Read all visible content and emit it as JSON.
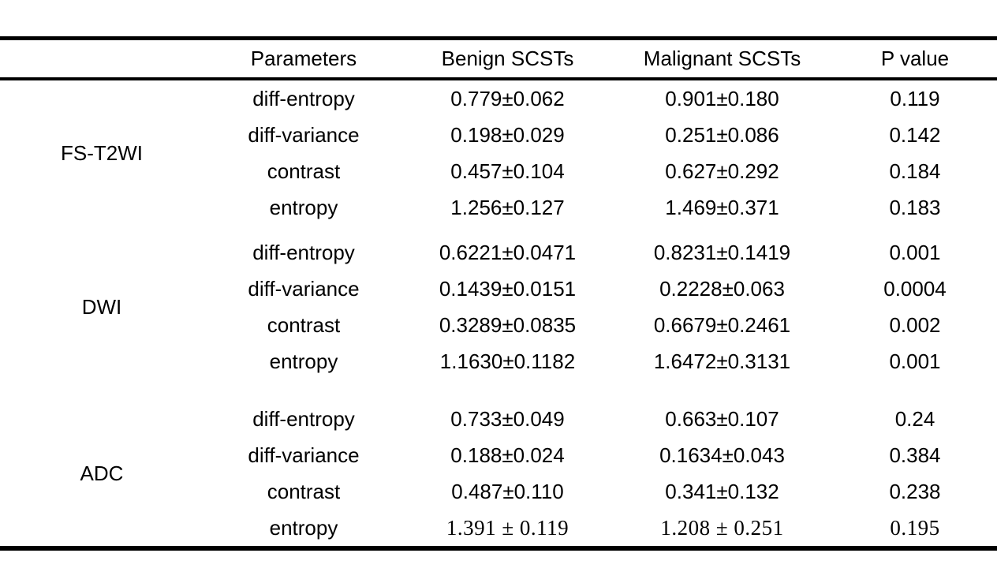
{
  "table": {
    "columns": {
      "group": "",
      "parameters": "Parameters",
      "benign": "Benign SCSTs",
      "malignant": "Malignant SCSTs",
      "pvalue": "P value"
    },
    "groups": [
      {
        "label": "FS-T2WI",
        "rows": [
          {
            "parameter": "diff-entropy",
            "benign": "0.779±0.062",
            "malignant": "0.901±0.180",
            "p": "0.119"
          },
          {
            "parameter": "diff-variance",
            "benign": "0.198±0.029",
            "malignant": "0.251±0.086",
            "p": "0.142"
          },
          {
            "parameter": "contrast",
            "benign": "0.457±0.104",
            "malignant": "0.627±0.292",
            "p": "0.184"
          },
          {
            "parameter": "entropy",
            "benign": "1.256±0.127",
            "malignant": "1.469±0.371",
            "p": "0.183"
          }
        ]
      },
      {
        "label": "DWI",
        "rows": [
          {
            "parameter": "diff-entropy",
            "benign": "0.6221±0.0471",
            "malignant": "0.8231±0.1419",
            "p": "0.001"
          },
          {
            "parameter": "diff-variance",
            "benign": "0.1439±0.0151",
            "malignant": "0.2228±0.063",
            "p": "0.0004"
          },
          {
            "parameter": "contrast",
            "benign": "0.3289±0.0835",
            "malignant": "0.6679±0.2461",
            "p": "0.002"
          },
          {
            "parameter": "entropy",
            "benign": "1.1630±0.1182",
            "malignant": "1.6472±0.3131",
            "p": "0.001"
          }
        ]
      },
      {
        "label": "ADC",
        "rows": [
          {
            "parameter": "diff-entropy",
            "benign": "0.733±0.049",
            "malignant": "0.663±0.107",
            "p": "0.24"
          },
          {
            "parameter": "diff-variance",
            "benign": "0.188±0.024",
            "malignant": "0.1634±0.043",
            "p": "0.384"
          },
          {
            "parameter": "contrast",
            "benign": "0.487±0.110",
            "malignant": "0.341±0.132",
            "p": "0.238"
          },
          {
            "parameter": "entropy",
            "benign": "1.391 ± 0.119",
            "malignant": "1.208 ± 0.251",
            "p": "0.195"
          }
        ]
      }
    ]
  }
}
